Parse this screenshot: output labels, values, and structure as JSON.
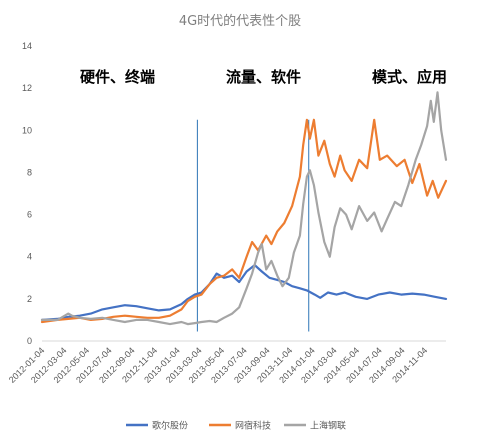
{
  "chart_data": {
    "type": "line",
    "title": "4G时代的代表性个股",
    "xlabel": "",
    "ylabel": "",
    "ylim": [
      0,
      14
    ],
    "yticks": [
      0,
      2,
      4,
      6,
      8,
      10,
      12,
      14
    ],
    "x_tick_labels": [
      "2012-01-04",
      "2012-03-04",
      "2012-05-04",
      "2012-07-04",
      "2012-09-04",
      "2012-11-04",
      "2013-01-04",
      "2013-03-04",
      "2013-05-04",
      "2013-07-04",
      "2013-09-04",
      "2013-11-04",
      "2014-01-04",
      "2014-03-04",
      "2014-05-04",
      "2014-07-04",
      "2014-09-04",
      "2014-11-04"
    ],
    "x_range": [
      "2012-01-04",
      "2014-12-31"
    ],
    "grid": false,
    "legend_position": "bottom",
    "annotations": [
      {
        "text": "硬件、终端"
      },
      {
        "text": "流量、软件"
      },
      {
        "text": "模式、应用"
      }
    ],
    "phase_dividers": [
      "2013-02-27",
      "2013-12-25"
    ],
    "series": [
      {
        "name": "歌尔股份",
        "color": "#4472c4",
        "points": [
          [
            "2012-01-04",
            1.0
          ],
          [
            "2012-02-15",
            1.05
          ],
          [
            "2012-03-15",
            1.15
          ],
          [
            "2012-04-15",
            1.2
          ],
          [
            "2012-05-15",
            1.3
          ],
          [
            "2012-06-15",
            1.5
          ],
          [
            "2012-07-15",
            1.6
          ],
          [
            "2012-08-15",
            1.7
          ],
          [
            "2012-09-15",
            1.65
          ],
          [
            "2012-10-15",
            1.55
          ],
          [
            "2012-11-15",
            1.45
          ],
          [
            "2012-12-15",
            1.5
          ],
          [
            "2013-01-15",
            1.75
          ],
          [
            "2013-02-01",
            2.0
          ],
          [
            "2013-02-20",
            2.2
          ],
          [
            "2013-03-10",
            2.3
          ],
          [
            "2013-04-01",
            2.7
          ],
          [
            "2013-04-20",
            3.2
          ],
          [
            "2013-05-10",
            3.0
          ],
          [
            "2013-06-01",
            3.1
          ],
          [
            "2013-06-20",
            2.8
          ],
          [
            "2013-07-10",
            3.3
          ],
          [
            "2013-08-01",
            3.6
          ],
          [
            "2013-08-20",
            3.3
          ],
          [
            "2013-09-10",
            3.0
          ],
          [
            "2013-10-01",
            2.9
          ],
          [
            "2013-10-20",
            2.8
          ],
          [
            "2013-11-10",
            2.6
          ],
          [
            "2013-12-01",
            2.5
          ],
          [
            "2013-12-20",
            2.4
          ],
          [
            "2014-01-10",
            2.2
          ],
          [
            "2014-01-25",
            2.05
          ],
          [
            "2014-02-15",
            2.3
          ],
          [
            "2014-03-10",
            2.2
          ],
          [
            "2014-04-01",
            2.3
          ],
          [
            "2014-05-01",
            2.1
          ],
          [
            "2014-06-01",
            2.0
          ],
          [
            "2014-07-01",
            2.2
          ],
          [
            "2014-08-01",
            2.3
          ],
          [
            "2014-09-01",
            2.2
          ],
          [
            "2014-10-01",
            2.25
          ],
          [
            "2014-11-01",
            2.2
          ],
          [
            "2014-12-01",
            2.1
          ],
          [
            "2014-12-31",
            2.0
          ]
        ]
      },
      {
        "name": "网宿科技",
        "color": "#ed7d31",
        "points": [
          [
            "2012-01-04",
            0.9
          ],
          [
            "2012-02-15",
            1.0
          ],
          [
            "2012-03-15",
            1.05
          ],
          [
            "2012-04-15",
            1.1
          ],
          [
            "2012-05-15",
            1.0
          ],
          [
            "2012-06-15",
            1.05
          ],
          [
            "2012-07-15",
            1.15
          ],
          [
            "2012-08-15",
            1.2
          ],
          [
            "2012-09-15",
            1.15
          ],
          [
            "2012-10-15",
            1.1
          ],
          [
            "2012-11-15",
            1.1
          ],
          [
            "2012-12-15",
            1.2
          ],
          [
            "2013-01-15",
            1.5
          ],
          [
            "2013-02-01",
            1.9
          ],
          [
            "2013-02-20",
            2.1
          ],
          [
            "2013-03-10",
            2.2
          ],
          [
            "2013-04-01",
            2.7
          ],
          [
            "2013-04-20",
            3.0
          ],
          [
            "2013-05-10",
            3.1
          ],
          [
            "2013-06-01",
            3.4
          ],
          [
            "2013-06-20",
            3.0
          ],
          [
            "2013-07-10",
            4.0
          ],
          [
            "2013-07-25",
            4.7
          ],
          [
            "2013-08-10",
            4.3
          ],
          [
            "2013-09-01",
            5.0
          ],
          [
            "2013-09-15",
            4.6
          ],
          [
            "2013-10-01",
            5.2
          ],
          [
            "2013-10-20",
            5.6
          ],
          [
            "2013-11-10",
            6.4
          ],
          [
            "2013-12-01",
            7.8
          ],
          [
            "2013-12-10",
            9.3
          ],
          [
            "2013-12-20",
            10.5
          ],
          [
            "2013-12-28",
            9.6
          ],
          [
            "2014-01-08",
            10.5
          ],
          [
            "2014-01-20",
            8.8
          ],
          [
            "2014-02-05",
            9.5
          ],
          [
            "2014-02-20",
            8.4
          ],
          [
            "2014-03-05",
            7.8
          ],
          [
            "2014-03-20",
            8.8
          ],
          [
            "2014-04-01",
            8.1
          ],
          [
            "2014-04-20",
            7.6
          ],
          [
            "2014-05-10",
            8.6
          ],
          [
            "2014-06-01",
            8.2
          ],
          [
            "2014-06-20",
            10.5
          ],
          [
            "2014-07-05",
            8.6
          ],
          [
            "2014-07-25",
            8.8
          ],
          [
            "2014-08-20",
            8.3
          ],
          [
            "2014-09-10",
            8.6
          ],
          [
            "2014-10-01",
            7.5
          ],
          [
            "2014-10-20",
            8.4
          ],
          [
            "2014-11-10",
            6.9
          ],
          [
            "2014-11-25",
            7.6
          ],
          [
            "2014-12-10",
            6.8
          ],
          [
            "2014-12-31",
            7.6
          ]
        ]
      },
      {
        "name": "上海钢联",
        "color": "#a5a5a5",
        "points": [
          [
            "2012-01-04",
            1.0
          ],
          [
            "2012-02-15",
            1.0
          ],
          [
            "2012-03-15",
            1.3
          ],
          [
            "2012-03-25",
            1.2
          ],
          [
            "2012-04-15",
            1.1
          ],
          [
            "2012-05-15",
            1.05
          ],
          [
            "2012-06-15",
            1.1
          ],
          [
            "2012-07-15",
            1.0
          ],
          [
            "2012-08-15",
            0.9
          ],
          [
            "2012-09-15",
            1.0
          ],
          [
            "2012-10-15",
            1.0
          ],
          [
            "2012-11-15",
            0.9
          ],
          [
            "2012-12-15",
            0.8
          ],
          [
            "2013-01-15",
            0.9
          ],
          [
            "2013-02-01",
            0.8
          ],
          [
            "2013-02-20",
            0.85
          ],
          [
            "2013-03-10",
            0.9
          ],
          [
            "2013-04-01",
            0.95
          ],
          [
            "2013-04-20",
            0.9
          ],
          [
            "2013-05-10",
            1.1
          ],
          [
            "2013-06-01",
            1.3
          ],
          [
            "2013-06-20",
            1.6
          ],
          [
            "2013-07-10",
            2.5
          ],
          [
            "2013-07-25",
            3.2
          ],
          [
            "2013-08-10",
            4.2
          ],
          [
            "2013-08-20",
            4.6
          ],
          [
            "2013-09-01",
            3.4
          ],
          [
            "2013-09-15",
            3.8
          ],
          [
            "2013-10-01",
            3.1
          ],
          [
            "2013-10-15",
            2.6
          ],
          [
            "2013-11-01",
            3.0
          ],
          [
            "2013-11-15",
            4.2
          ],
          [
            "2013-12-01",
            5.0
          ],
          [
            "2013-12-10",
            6.5
          ],
          [
            "2013-12-20",
            7.8
          ],
          [
            "2013-12-28",
            8.1
          ],
          [
            "2014-01-08",
            7.4
          ],
          [
            "2014-01-20",
            6.1
          ],
          [
            "2014-02-05",
            4.7
          ],
          [
            "2014-02-20",
            4.0
          ],
          [
            "2014-03-05",
            5.4
          ],
          [
            "2014-03-20",
            6.3
          ],
          [
            "2014-04-05",
            6.0
          ],
          [
            "2014-04-20",
            5.3
          ],
          [
            "2014-05-10",
            6.4
          ],
          [
            "2014-06-01",
            5.7
          ],
          [
            "2014-06-20",
            6.1
          ],
          [
            "2014-07-10",
            5.2
          ],
          [
            "2014-07-25",
            5.8
          ],
          [
            "2014-08-15",
            6.6
          ],
          [
            "2014-09-01",
            6.4
          ],
          [
            "2014-09-20",
            7.4
          ],
          [
            "2014-10-10",
            8.6
          ],
          [
            "2014-10-25",
            9.3
          ],
          [
            "2014-11-10",
            10.2
          ],
          [
            "2014-11-20",
            11.4
          ],
          [
            "2014-11-28",
            10.4
          ],
          [
            "2014-12-08",
            11.8
          ],
          [
            "2014-12-18",
            10.0
          ],
          [
            "2014-12-31",
            8.6
          ]
        ]
      }
    ]
  }
}
